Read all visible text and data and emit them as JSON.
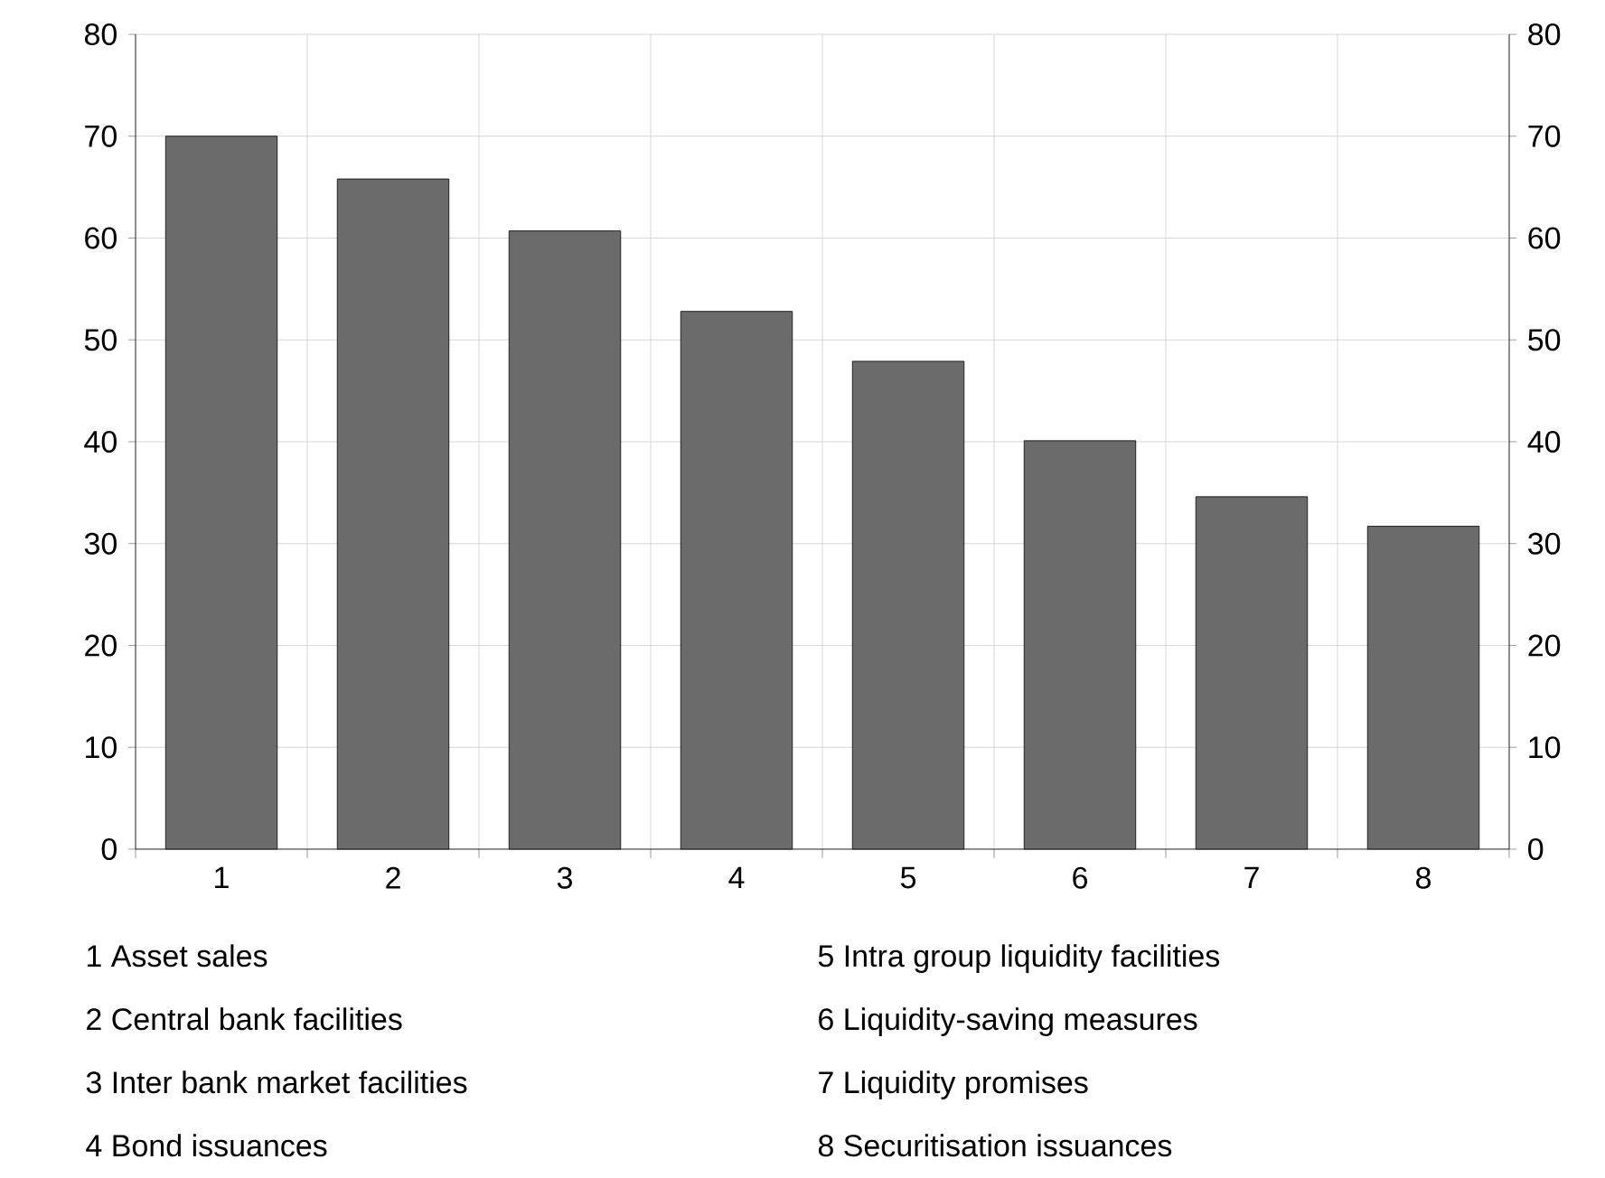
{
  "chart_data": {
    "type": "bar",
    "categories": [
      "1",
      "2",
      "3",
      "4",
      "5",
      "6",
      "7",
      "8"
    ],
    "values": [
      70,
      65.8,
      60.7,
      52.8,
      47.9,
      40.1,
      34.6,
      31.7
    ],
    "color": "#6b6b6b",
    "ylim": [
      0,
      80
    ],
    "yticks": [
      0,
      10,
      20,
      30,
      40,
      50,
      60,
      70,
      80
    ],
    "y2lim": [
      0,
      80
    ],
    "y2ticks": [
      0,
      10,
      20,
      30,
      40,
      50,
      60,
      70,
      80
    ],
    "grid": true,
    "annotations": [
      "1 Asset sales",
      "2 Central bank facilities",
      "3 Inter bank market facilities",
      "4 Bond issuances",
      "5 Intra group liquidity facilities",
      "6 Liquidity-saving measures",
      "7 Liquidity promises",
      "8 Securitisation issuances"
    ]
  }
}
